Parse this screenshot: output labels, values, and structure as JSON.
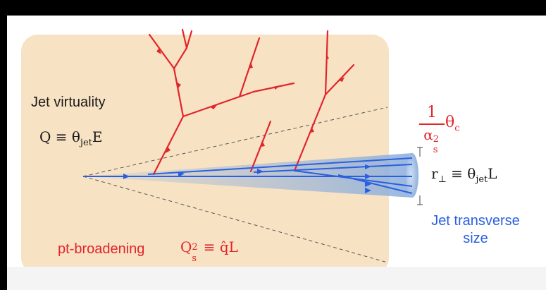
{
  "labels": {
    "jet_virtuality": "Jet virtuality",
    "q_prefix": "Q ≡ θ",
    "q_sub": "jet",
    "q_suffix": "E",
    "frac_num": "1",
    "frac_den_base": "α",
    "frac_den_sup": "2",
    "frac_den_sub": "s",
    "theta_c_base": "θ",
    "theta_c_sub": "c",
    "r_prefix": "r",
    "r_sub": "⊥",
    "r_mid": " ≡ θ",
    "r_sub2": "jet",
    "r_suffix": "L",
    "jet_transverse_line1": "Jet transverse",
    "jet_transverse_line2": "size",
    "pt_broadening": "pt-broadening",
    "qs_base": "Q",
    "qs_sup": "2",
    "qs_sub": "s",
    "qs_rest": " ≡ q̂L"
  },
  "colors": {
    "panel": "#f7e3c4",
    "red": "#e3242b",
    "blue": "#2a5fe0",
    "cone": "#9db4d6"
  }
}
